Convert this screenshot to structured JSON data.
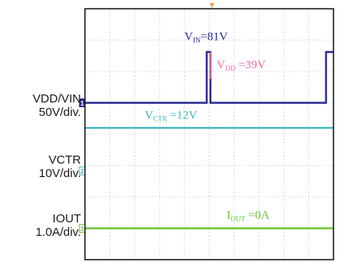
{
  "chart_data": {
    "type": "line",
    "title": "",
    "xlabel": "",
    "ylabel": "",
    "grid": true,
    "grid_divisions": {
      "x": 10,
      "y": 8
    },
    "ylim": [
      0,
      8
    ],
    "channel_labels": [
      {
        "name": "VDD/VIN",
        "scale": "50V/div.",
        "marker": "1",
        "color": "#2b2a8a"
      },
      {
        "name": "VCTR",
        "scale": "10V/div.",
        "marker": "2",
        "color": "#3fb8c4"
      },
      {
        "name": "IOUT",
        "scale": "1.0A/div.",
        "marker": "3",
        "color": "#6cc43a"
      }
    ],
    "series": [
      {
        "name": "VIN",
        "color": "#2b2a8a",
        "baseline_div": 5.0,
        "points": [
          [
            0,
            5.0
          ],
          [
            4.9,
            5.0
          ],
          [
            4.9,
            6.62
          ],
          [
            5.05,
            6.62
          ],
          [
            5.05,
            5.0
          ],
          [
            9.7,
            5.0
          ],
          [
            9.7,
            6.62
          ],
          [
            10,
            6.62
          ]
        ]
      },
      {
        "name": "VDD",
        "color": "#e86aa6",
        "points": [
          [
            5.05,
            6.62
          ],
          [
            5.05,
            5.78
          ],
          [
            5.12,
            5.78
          ]
        ]
      },
      {
        "name": "VCTR",
        "color": "#3fb8c4",
        "points": [
          [
            0,
            4.2
          ],
          [
            10,
            4.2
          ]
        ]
      },
      {
        "name": "IOUT",
        "color": "#6cc43a",
        "points": [
          [
            0,
            1.0
          ],
          [
            10,
            1.0
          ]
        ]
      }
    ],
    "annotations": [
      {
        "main": "V",
        "sub": "IN",
        "tail": "=81V",
        "color": "#2b2a8a",
        "at": [
          4.0,
          7.0
        ]
      },
      {
        "main": "V",
        "sub": "DD",
        "tail": " =39V",
        "color": "#e86aa6",
        "at": [
          5.3,
          6.1
        ]
      },
      {
        "main": "V",
        "sub": "CTR",
        "tail": " =12V",
        "color": "#3fb8c4",
        "at": [
          2.4,
          4.5
        ]
      },
      {
        "main": "I",
        "sub": "OUT",
        "tail": " =0A",
        "color": "#6cc43a",
        "at": [
          5.7,
          1.3
        ]
      }
    ]
  }
}
